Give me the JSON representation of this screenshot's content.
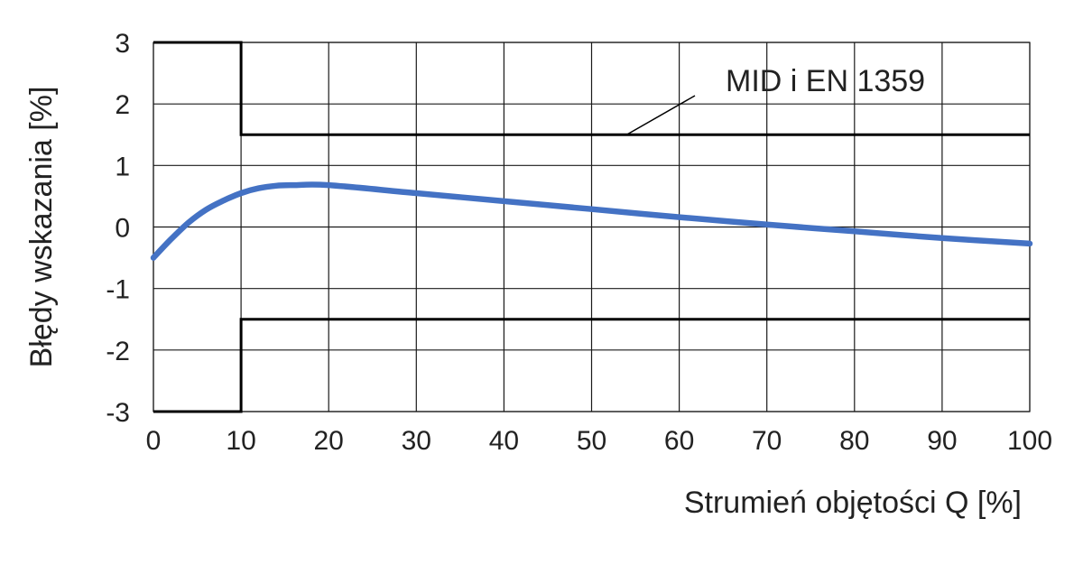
{
  "chart_data": {
    "type": "line",
    "title": "",
    "xlabel": "Strumień objętości Q [%]",
    "ylabel": "Błędy wskazania [%]",
    "xlim": [
      0,
      100
    ],
    "ylim": [
      -3,
      3
    ],
    "xticks": [
      0,
      10,
      20,
      30,
      40,
      50,
      60,
      70,
      80,
      90,
      100
    ],
    "yticks": [
      3,
      2,
      1,
      0,
      -1,
      -2,
      -3
    ],
    "xtick_labels": [
      "0",
      "10",
      "20",
      "30",
      "40",
      "50",
      "60",
      "70",
      "80",
      "90",
      "100"
    ],
    "ytick_labels": [
      "3",
      "2",
      "1",
      "0",
      "-1",
      "-2",
      "-3"
    ],
    "grid": true,
    "annotation": {
      "text": "MID i EN 1359"
    },
    "series": [
      {
        "color": "#4472C4",
        "x": [
          0,
          2,
          4,
          6,
          8,
          10,
          12,
          14,
          16,
          20,
          30,
          40,
          50,
          60,
          70,
          80,
          90,
          100
        ],
        "y": [
          -0.5,
          -0.2,
          0.07,
          0.28,
          0.43,
          0.55,
          0.63,
          0.67,
          0.68,
          0.68,
          0.55,
          0.42,
          0.29,
          0.16,
          0.04,
          -0.07,
          -0.18,
          -0.27
        ]
      }
    ],
    "limits": {
      "color": "#000000",
      "upper": {
        "x": [
          0,
          10,
          10,
          100
        ],
        "y": [
          3,
          3,
          1.5,
          1.5
        ]
      },
      "lower": {
        "x": [
          0,
          10,
          10,
          100
        ],
        "y": [
          -3,
          -3,
          -1.5,
          -1.5
        ]
      }
    }
  }
}
